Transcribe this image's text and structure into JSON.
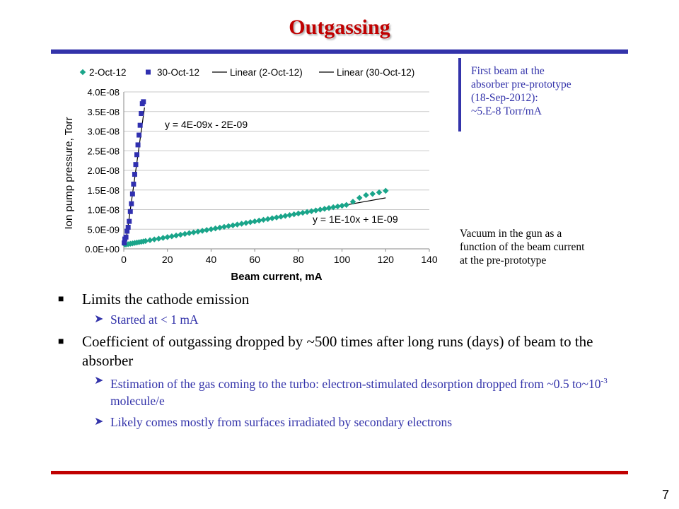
{
  "title": "Outgassing",
  "page_number": "7",
  "notes": {
    "first_beam": [
      "First beam at the",
      "absorber pre-prototype",
      "(18-Sep-2012):",
      "~5.E-8 Torr/mA"
    ],
    "caption": [
      "Vacuum in the gun as a",
      "function of the beam current",
      "at the pre-prototype"
    ]
  },
  "bullets": {
    "b1": "Limits the cathode emission",
    "b1_sub": "Started at < 1 mA",
    "b2": "Coefficient of outgassing dropped by ~500 times after long runs (days) of beam to the absorber",
    "b2_sub1_pre": "Estimation of the gas coming to the turbo: electron-stimulated desorption dropped from ~0.5 to~10",
    "b2_sub1_sup": "-3",
    "b2_sub1_post": " molecule/e",
    "b2_sub2": "Likely comes mostly from surfaces irradiated by secondary electrons"
  },
  "colors": {
    "accent": "#c00000",
    "blue": "#3333aa",
    "series1": "#1aa58a",
    "series2": "#3030b0"
  },
  "chart_data": {
    "type": "scatter",
    "xlabel": "Beam current, mA",
    "ylabel": "Ion pump pressure, Torr",
    "xlim": [
      0,
      140
    ],
    "ylim": [
      0,
      4e-08
    ],
    "x_ticks": [
      0,
      20,
      40,
      60,
      80,
      100,
      120,
      140
    ],
    "y_ticks": [
      0,
      5e-09,
      1e-08,
      1.5e-08,
      2e-08,
      2.5e-08,
      3e-08,
      3.5e-08,
      4e-08
    ],
    "x_tick_labels": [
      "0",
      "20",
      "40",
      "60",
      "80",
      "100",
      "120",
      "140"
    ],
    "y_tick_labels": [
      "0.0E+00",
      "5.0E-09",
      "1.0E-08",
      "1.5E-08",
      "2.0E-08",
      "2.5E-08",
      "3.0E-08",
      "3.5E-08",
      "4.0E-08"
    ],
    "grid": "horizontal",
    "legend": "top",
    "legend_labels": [
      "2-Oct-12",
      "30-Oct-12",
      "Linear (2-Oct-12)",
      "Linear (30-Oct-12)"
    ],
    "series": [
      {
        "name": "2-Oct-12",
        "marker": "diamond",
        "color": "#1aa58a",
        "x": [
          0.5,
          1,
          2,
          3,
          4,
          5,
          6,
          7,
          8,
          9,
          10,
          12,
          14,
          16,
          18,
          20,
          22,
          24,
          26,
          28,
          30,
          32,
          34,
          36,
          38,
          40,
          42,
          44,
          46,
          48,
          50,
          52,
          54,
          56,
          58,
          60,
          62,
          64,
          66,
          68,
          70,
          72,
          74,
          76,
          78,
          80,
          82,
          84,
          86,
          88,
          90,
          92,
          94,
          96,
          98,
          100,
          102,
          105,
          108,
          111,
          114,
          117,
          120
        ],
        "y": [
          1.1e-09,
          1.1e-09,
          1.2e-09,
          1.3e-09,
          1.4e-09,
          1.5e-09,
          1.6e-09,
          1.7e-09,
          1.8e-09,
          1.9e-09,
          2e-09,
          2.2e-09,
          2.4e-09,
          2.6e-09,
          2.8e-09,
          3e-09,
          3.2e-09,
          3.4e-09,
          3.6e-09,
          3.8e-09,
          4e-09,
          4.2e-09,
          4.4e-09,
          4.6e-09,
          4.8e-09,
          5e-09,
          5.2e-09,
          5.4e-09,
          5.6e-09,
          5.8e-09,
          6e-09,
          6.2e-09,
          6.4e-09,
          6.6e-09,
          6.8e-09,
          7e-09,
          7.2e-09,
          7.4e-09,
          7.6e-09,
          7.8e-09,
          8e-09,
          8.2e-09,
          8.4e-09,
          8.6e-09,
          8.8e-09,
          9e-09,
          9.2e-09,
          9.4e-09,
          9.6e-09,
          9.8e-09,
          1e-08,
          1.02e-08,
          1.04e-08,
          1.06e-08,
          1.08e-08,
          1.1e-08,
          1.12e-08,
          1.2e-08,
          1.3e-08,
          1.37e-08,
          1.4e-08,
          1.44e-08,
          1.48e-08
        ]
      },
      {
        "name": "30-Oct-12",
        "marker": "square",
        "color": "#3030b0",
        "x": [
          0.2,
          0.5,
          1,
          1.5,
          2,
          2.5,
          3,
          3.5,
          4,
          4.5,
          5,
          5.5,
          6,
          6.5,
          7,
          7.5,
          8,
          8.5,
          9
        ],
        "y": [
          1.5e-09,
          2.5e-09,
          3e-09,
          4.5e-09,
          5.5e-09,
          7e-09,
          9.5e-09,
          1.15e-08,
          1.4e-08,
          1.65e-08,
          1.9e-08,
          2.15e-08,
          2.4e-08,
          2.65e-08,
          2.9e-08,
          3.15e-08,
          3.45e-08,
          3.7e-08,
          3.75e-08
        ]
      }
    ],
    "trendlines": [
      {
        "name": "Linear (2-Oct-12)",
        "slope": 1e-10,
        "intercept": 1e-09,
        "x_range": [
          0,
          120
        ],
        "label": "y = 1E-10x + 1E-09"
      },
      {
        "name": "Linear (30-Oct-12)",
        "slope": 4e-09,
        "intercept": -2e-09,
        "x_range": [
          0.9,
          9.5
        ],
        "label": "y = 4E-09x - 2E-09"
      }
    ]
  }
}
